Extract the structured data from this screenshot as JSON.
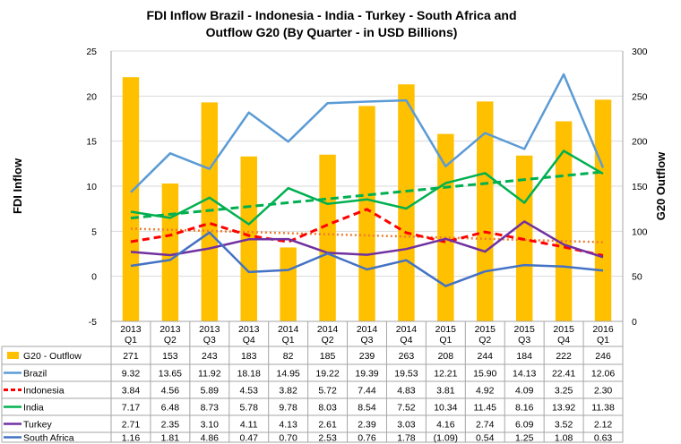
{
  "chart_data": {
    "type": "bar+line",
    "title_line1": "FDI Inflow  Brazil - Indonesia - India - Turkey - South Africa and",
    "title_line2": "Outflow G20 (By Quarter - in USD Billions)",
    "ylabel_left": "FDI Inflow",
    "ylabel_right": "G20 Outflow",
    "ylim_left": [
      -5,
      25
    ],
    "yticks_left": [
      -5,
      0,
      5,
      10,
      15,
      20,
      25
    ],
    "ylim_right": [
      0,
      300
    ],
    "yticks_right": [
      0,
      50,
      100,
      150,
      200,
      250,
      300
    ],
    "categories": [
      [
        "2013",
        "Q1"
      ],
      [
        "2013",
        "Q2"
      ],
      [
        "2013",
        "Q3"
      ],
      [
        "2013",
        "Q4"
      ],
      [
        "2014",
        "Q1"
      ],
      [
        "2014",
        "Q2"
      ],
      [
        "2014",
        "Q3"
      ],
      [
        "2014",
        "Q4"
      ],
      [
        "2015",
        "Q1"
      ],
      [
        "2015",
        "Q2"
      ],
      [
        "2015",
        "Q3"
      ],
      [
        "2015",
        "Q4"
      ],
      [
        "2016",
        "Q1"
      ]
    ],
    "series": [
      {
        "name": "G20 - Outflow",
        "kind": "bar",
        "axis": "right",
        "color": "#FFC000",
        "values": [
          271,
          153,
          243,
          183,
          82,
          185,
          239,
          263,
          208,
          244,
          184,
          222,
          246
        ],
        "labels": [
          "271",
          "153",
          "243",
          "183",
          "82",
          "185",
          "239",
          "263",
          "208",
          "244",
          "184",
          "222",
          "246"
        ]
      },
      {
        "name": "Brazil",
        "kind": "line",
        "axis": "left",
        "color": "#5B9BD5",
        "values": [
          9.32,
          13.65,
          11.92,
          18.18,
          14.95,
          19.22,
          19.39,
          19.53,
          12.21,
          15.9,
          14.13,
          22.41,
          12.06
        ],
        "labels": [
          "9.32",
          "13.65",
          "11.92",
          "18.18",
          "14.95",
          "19.22",
          "19.39",
          "19.53",
          "12.21",
          "15.90",
          "14.13",
          "22.41",
          "12.06"
        ]
      },
      {
        "name": "Indonesia",
        "kind": "line",
        "axis": "left",
        "color": "#FF0000",
        "dash": true,
        "values": [
          3.84,
          4.56,
          5.89,
          4.53,
          3.82,
          5.72,
          7.44,
          4.83,
          3.81,
          4.92,
          4.09,
          3.25,
          2.3
        ],
        "labels": [
          "3.84",
          "4.56",
          "5.89",
          "4.53",
          "3.82",
          "5.72",
          "7.44",
          "4.83",
          "3.81",
          "4.92",
          "4.09",
          "3.25",
          "2.30"
        ]
      },
      {
        "name": "India",
        "kind": "line",
        "axis": "left",
        "color": "#00B050",
        "values": [
          7.17,
          6.48,
          8.73,
          5.78,
          9.78,
          8.03,
          8.54,
          7.52,
          10.34,
          11.45,
          8.16,
          13.92,
          11.38
        ],
        "labels": [
          "7.17",
          "6.48",
          "8.73",
          "5.78",
          "9.78",
          "8.03",
          "8.54",
          "7.52",
          "10.34",
          "11.45",
          "8.16",
          "13.92",
          "11.38"
        ]
      },
      {
        "name": "Turkey",
        "kind": "line",
        "axis": "left",
        "color": "#7030A0",
        "values": [
          2.71,
          2.35,
          3.1,
          4.11,
          4.13,
          2.61,
          2.39,
          3.03,
          4.16,
          2.74,
          6.09,
          3.52,
          2.12
        ],
        "labels": [
          "2.71",
          "2.35",
          "3.10",
          "4.11",
          "4.13",
          "2.61",
          "2.39",
          "3.03",
          "4.16",
          "2.74",
          "6.09",
          "3.52",
          "2.12"
        ]
      },
      {
        "name": "South Africa",
        "kind": "line",
        "axis": "left",
        "color": "#4472C4",
        "values": [
          1.16,
          1.81,
          4.86,
          0.47,
          0.7,
          2.53,
          0.76,
          1.78,
          -1.09,
          0.54,
          1.25,
          1.08,
          0.63
        ],
        "labels": [
          "1.16",
          "1.81",
          "4.86",
          "0.47",
          "0.70",
          "2.53",
          "0.76",
          "1.78",
          "(1.09)",
          "0.54",
          "1.25",
          "1.08",
          "0.63"
        ]
      }
    ],
    "trendlines": [
      {
        "of": "India",
        "color": "#00B050",
        "style": "dashed"
      },
      {
        "of": "Indonesia",
        "color": "#ED7D31",
        "style": "dotted"
      }
    ],
    "data_table": true
  }
}
